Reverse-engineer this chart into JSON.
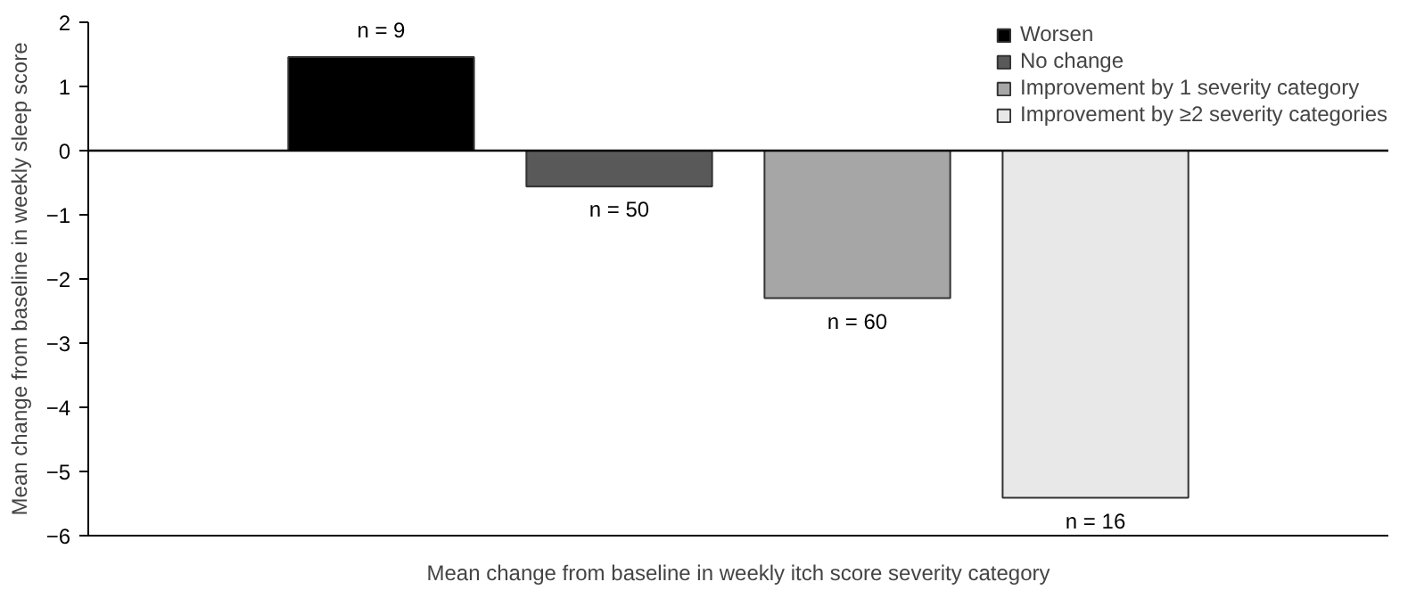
{
  "chart_data": {
    "type": "bar",
    "xlabel": "Mean change from baseline in weekly itch score severity category",
    "ylabel": "Mean change from baseline in weekly sleep score",
    "categories": [
      null,
      null,
      null,
      null
    ],
    "series": [
      {
        "name": "Worsen",
        "color": "#000000",
        "values": [
          1.46,
          null,
          null,
          null
        ]
      },
      {
        "name": "No change",
        "color": "#595959",
        "values": [
          null,
          -0.56,
          null,
          null
        ]
      },
      {
        "name": "Improvement by 1 severity category",
        "color": "#a6a6a6",
        "values": [
          null,
          null,
          -2.3,
          null
        ]
      },
      {
        "name": "Improvement by ≥2 severity categories",
        "color": "#e8e8e8",
        "values": [
          null,
          null,
          null,
          -5.41
        ]
      }
    ],
    "annotations": [
      {
        "text": "n = 9",
        "y": 1.46
      },
      {
        "text": "n = 50",
        "y": -0.56
      },
      {
        "text": "n = 60",
        "y": -2.3
      },
      {
        "text": "n = 16",
        "y": -5.41
      }
    ],
    "ylim": [
      -6,
      2
    ],
    "yticks": [
      -6,
      -5,
      -4,
      -3,
      -2,
      -1,
      0,
      1,
      2
    ],
    "ref_lines": [
      {
        "axis": "y",
        "value": 0,
        "color": "#000000"
      }
    ],
    "tick_labels": "y",
    "grid": false,
    "legend": "top right"
  }
}
